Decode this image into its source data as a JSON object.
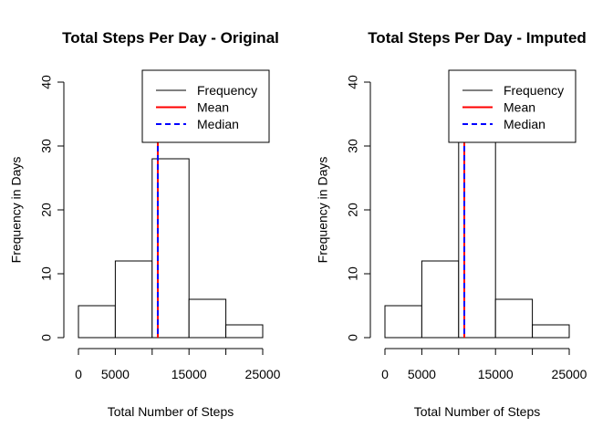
{
  "chart_data": [
    {
      "type": "bar",
      "title": "Total Steps Per Day - Original",
      "xlabel": "Total Number of Steps",
      "ylabel": "Frequency in Days",
      "xlim": [
        0,
        25000
      ],
      "ylim": [
        0,
        40
      ],
      "x_ticks": [
        0,
        5000,
        15000,
        25000
      ],
      "y_ticks": [
        0,
        10,
        20,
        30,
        40
      ],
      "bins": [
        {
          "start": 0,
          "end": 5000,
          "count": 5
        },
        {
          "start": 5000,
          "end": 10000,
          "count": 12
        },
        {
          "start": 10000,
          "end": 15000,
          "count": 28
        },
        {
          "start": 15000,
          "end": 20000,
          "count": 6
        },
        {
          "start": 20000,
          "end": 25000,
          "count": 2
        }
      ],
      "mean": 10766,
      "median": 10765,
      "legend": {
        "position": "top-right",
        "entries": [
          "Frequency",
          "Mean",
          "Median"
        ]
      }
    },
    {
      "type": "bar",
      "title": "Total Steps Per Day - Imputed",
      "xlabel": "Total Number of Steps",
      "ylabel": "Frequency in Days",
      "xlim": [
        0,
        25000
      ],
      "ylim": [
        0,
        40
      ],
      "x_ticks": [
        0,
        5000,
        15000,
        25000
      ],
      "y_ticks": [
        0,
        10,
        20,
        30,
        40
      ],
      "bins": [
        {
          "start": 0,
          "end": 5000,
          "count": 5
        },
        {
          "start": 5000,
          "end": 10000,
          "count": 12
        },
        {
          "start": 10000,
          "end": 15000,
          "count": 36
        },
        {
          "start": 15000,
          "end": 20000,
          "count": 6
        },
        {
          "start": 20000,
          "end": 25000,
          "count": 2
        }
      ],
      "mean": 10766,
      "median": 10766,
      "legend": {
        "position": "top-right",
        "entries": [
          "Frequency",
          "Mean",
          "Median"
        ]
      }
    }
  ],
  "colors": {
    "frequency": "#000000",
    "mean": "#ff0000",
    "median": "#0000ff",
    "bar_fill": "#ffffff"
  }
}
